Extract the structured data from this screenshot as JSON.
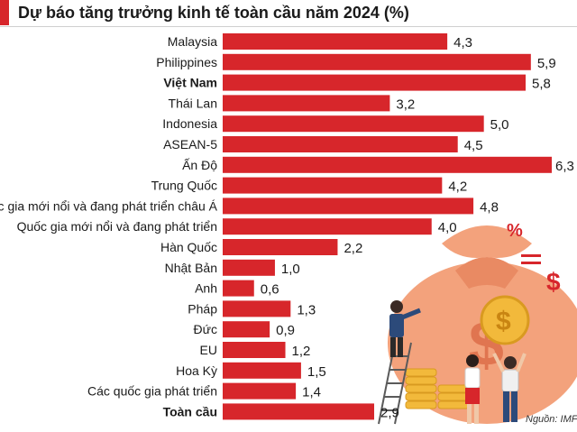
{
  "chart_data": {
    "type": "bar",
    "orientation": "horizontal",
    "title": "Dự báo tăng trưởng kinh tế toàn cầu năm 2024 (%)",
    "categories": [
      "Malaysia",
      "Philippines",
      "Việt Nam",
      "Thái Lan",
      "Indonesia",
      "ASEAN-5",
      "Ấn Độ",
      "Trung Quốc",
      "Quốc gia mới nổi và đang phát triển châu Á",
      "Quốc gia mới nổi và đang phát triển",
      "Hàn Quốc",
      "Nhật Bản",
      "Anh",
      "Pháp",
      "Đức",
      "EU",
      "Hoa Kỳ",
      "Các quốc gia phát triển",
      "Toàn cầu"
    ],
    "values": [
      4.3,
      5.9,
      5.8,
      3.2,
      5.0,
      4.5,
      6.3,
      4.2,
      4.8,
      4.0,
      2.2,
      1.0,
      0.6,
      1.3,
      0.9,
      1.2,
      1.5,
      1.4,
      2.9
    ],
    "value_labels": [
      "4,3",
      "5,9",
      "5,8",
      "3,2",
      "5,0",
      "4,5",
      "6,3",
      "4,2",
      "4,8",
      "4,0",
      "2,2",
      "1,0",
      "0,6",
      "1,3",
      "0,9",
      "1,2",
      "1,5",
      "1,4",
      "2,9"
    ],
    "bold_categories": [
      "Việt Nam",
      "Toàn cầu"
    ],
    "xlim": [
      0,
      6.3
    ],
    "grid": false,
    "bar_color": "#d7262b",
    "source": "Nguồn: IMF"
  },
  "illustration": {
    "percent_symbol": "%",
    "dollar_symbol": "$",
    "bag_color": "#f3a27c",
    "coin_color": "#f2b93b"
  }
}
